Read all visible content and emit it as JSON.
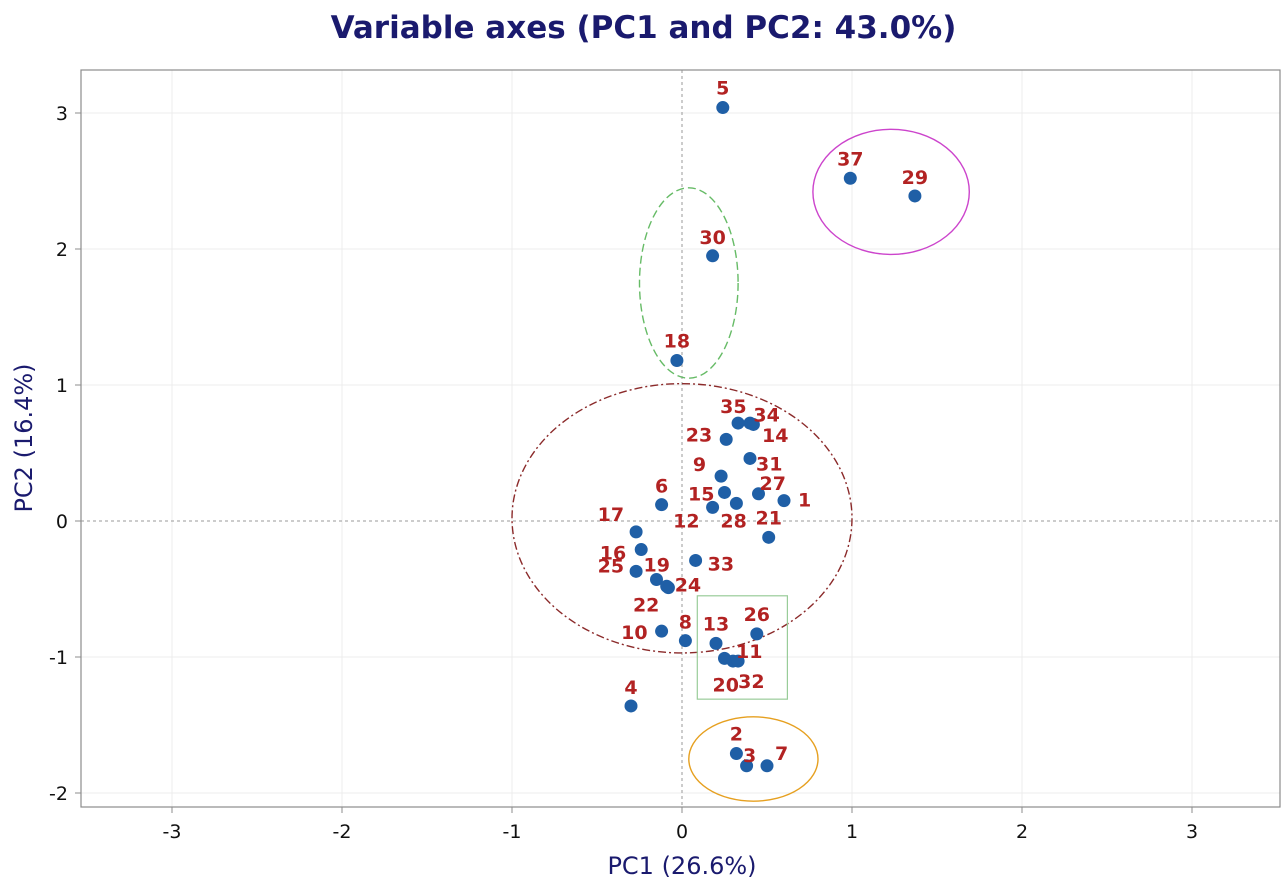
{
  "chart_data": {
    "type": "scatter",
    "title": "Variable axes (PC1 and PC2: 43.0%)",
    "xlabel": "PC1 (26.6%)",
    "ylabel": "PC2 (16.4%)",
    "xlim": [
      -3.75,
      3.5
    ],
    "ylim": [
      -2.1,
      3.35
    ],
    "xticks": [
      -3,
      -2,
      -1,
      0,
      1,
      2,
      3
    ],
    "yticks": [
      -2,
      -1,
      0,
      1,
      2,
      3
    ],
    "grid": true,
    "colors": {
      "point": "#1f5fa6",
      "label": "#b22222",
      "title": "#1a1a6e",
      "axis_label": "#1a1a6e",
      "group_magenta": "#cc44cc",
      "group_green": "#66bb66",
      "group_darkred": "#8b2a2a",
      "group_orange": "#e6a020",
      "group_box": "#99cc99"
    },
    "points": [
      {
        "label": "1",
        "x": 0.6,
        "y": 0.15
      },
      {
        "label": "2",
        "x": 0.32,
        "y": -1.71
      },
      {
        "label": "3",
        "x": 0.38,
        "y": -1.8
      },
      {
        "label": "4",
        "x": -0.3,
        "y": -1.36
      },
      {
        "label": "5",
        "x": 0.24,
        "y": 3.04
      },
      {
        "label": "6",
        "x": -0.12,
        "y": 0.12
      },
      {
        "label": "7",
        "x": 0.5,
        "y": -1.8
      },
      {
        "label": "8",
        "x": 0.02,
        "y": -0.88
      },
      {
        "label": "9",
        "x": 0.23,
        "y": 0.33
      },
      {
        "label": "10",
        "x": -0.12,
        "y": -0.81
      },
      {
        "label": "11",
        "x": 0.3,
        "y": -1.03
      },
      {
        "label": "12",
        "x": 0.18,
        "y": 0.1
      },
      {
        "label": "13",
        "x": 0.2,
        "y": -0.9
      },
      {
        "label": "14",
        "x": 0.4,
        "y": 0.72
      },
      {
        "label": "15",
        "x": 0.25,
        "y": 0.21
      },
      {
        "label": "16",
        "x": -0.24,
        "y": -0.21
      },
      {
        "label": "17",
        "x": -0.27,
        "y": -0.08
      },
      {
        "label": "18",
        "x": -0.03,
        "y": 1.18
      },
      {
        "label": "19",
        "x": -0.15,
        "y": -0.43
      },
      {
        "label": "20",
        "x": 0.25,
        "y": -1.01
      },
      {
        "label": "21",
        "x": 0.51,
        "y": -0.12
      },
      {
        "label": "22",
        "x": -0.08,
        "y": -0.49
      },
      {
        "label": "23",
        "x": 0.26,
        "y": 0.6
      },
      {
        "label": "24",
        "x": -0.09,
        "y": -0.48
      },
      {
        "label": "25",
        "x": -0.27,
        "y": -0.37
      },
      {
        "label": "26",
        "x": 0.44,
        "y": -0.83
      },
      {
        "label": "27",
        "x": 0.45,
        "y": 0.2
      },
      {
        "label": "28",
        "x": 0.32,
        "y": 0.13
      },
      {
        "label": "29",
        "x": 1.37,
        "y": 2.39
      },
      {
        "label": "30",
        "x": 0.18,
        "y": 1.95
      },
      {
        "label": "31",
        "x": 0.4,
        "y": 0.46
      },
      {
        "label": "32",
        "x": 0.33,
        "y": -1.03
      },
      {
        "label": "33",
        "x": 0.08,
        "y": -0.29
      },
      {
        "label": "34",
        "x": 0.42,
        "y": 0.71
      },
      {
        "label": "35",
        "x": 0.33,
        "y": 0.72
      },
      {
        "label": "37",
        "x": 0.99,
        "y": 2.52
      }
    ]
  }
}
